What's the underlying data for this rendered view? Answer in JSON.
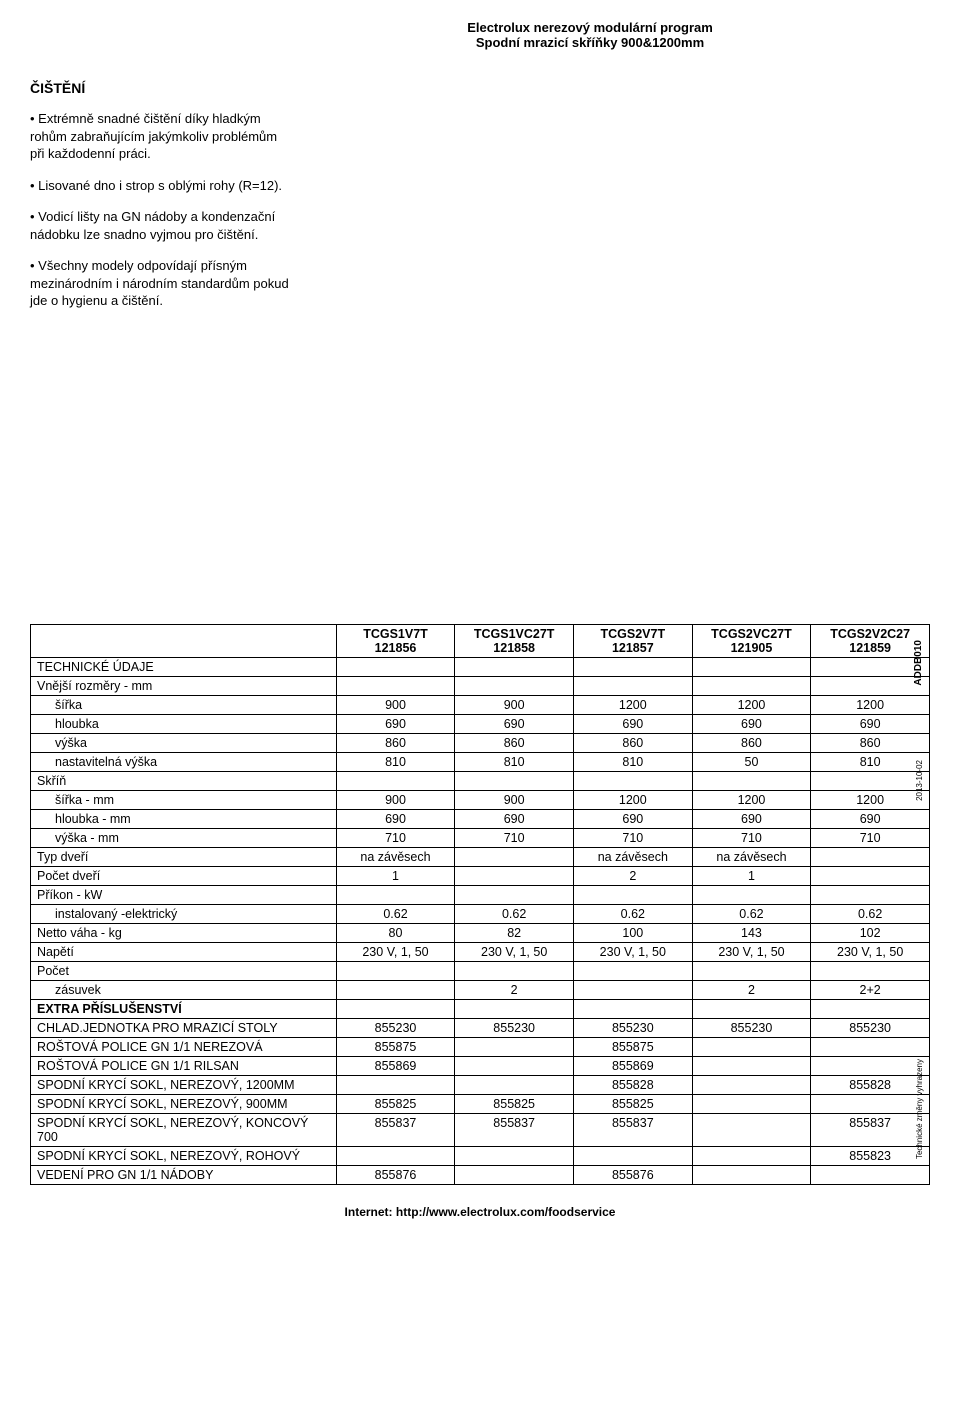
{
  "header": {
    "line1": "Electrolux nerezový modulární program",
    "line2": "Spodní mrazicí skříňky 900&1200mm"
  },
  "section_title": "ČIŠTĚNÍ",
  "bullets": [
    "• Extrémně snadné čištění díky hladkým rohům zabraňujícím jakýmkoliv problémům při každodenní práci.",
    "• Lisované dno i strop s oblými rohy (R=12).",
    "• Vodicí lišty na GN nádoby a kondenzační nádobku lze snadno vyjmou pro čištění.",
    "• Všechny modely odpovídají přísným mezinárodním i národním standardům pokud jde o hygienu a čištění."
  ],
  "table": {
    "columns": [
      {
        "model": "TCGS1V7T",
        "code": "121856"
      },
      {
        "model": "TCGS1VC27T",
        "code": "121858"
      },
      {
        "model": "TCGS2V7T",
        "code": "121857"
      },
      {
        "model": "TCGS2VC27T",
        "code": "121905"
      },
      {
        "model": "TCGS2V2C27",
        "code": "121859"
      }
    ],
    "sections": [
      {
        "heading": "TECHNICKÉ ÚDAJE",
        "rows": []
      },
      {
        "heading": "Vnější rozměry - mm",
        "indent": true,
        "rows": [
          {
            "label": "šířka",
            "v": [
              "900",
              "900",
              "1200",
              "1200",
              "1200"
            ]
          },
          {
            "label": "hloubka",
            "v": [
              "690",
              "690",
              "690",
              "690",
              "690"
            ]
          },
          {
            "label": "výška",
            "v": [
              "860",
              "860",
              "860",
              "860",
              "860"
            ]
          },
          {
            "label": "nastavitelná výška",
            "v": [
              "810",
              "810",
              "810",
              "50",
              "810"
            ]
          }
        ]
      },
      {
        "heading": "Skříň",
        "indent": true,
        "rows": [
          {
            "label": "šířka - mm",
            "v": [
              "900",
              "900",
              "1200",
              "1200",
              "1200"
            ]
          },
          {
            "label": "hloubka - mm",
            "v": [
              "690",
              "690",
              "690",
              "690",
              "690"
            ]
          },
          {
            "label": "výška - mm",
            "v": [
              "710",
              "710",
              "710",
              "710",
              "710"
            ]
          }
        ]
      },
      {
        "heading": "Typ dveří",
        "inline_values": [
          "na závěsech",
          "",
          "na závěsech",
          "na závěsech",
          ""
        ],
        "rows": []
      },
      {
        "heading": "Počet dveří",
        "inline_values": [
          "1",
          "",
          "2",
          "1",
          ""
        ],
        "rows": []
      },
      {
        "heading": "Příkon - kW",
        "indent": true,
        "rows": [
          {
            "label": "instalovaný -elektrický",
            "v": [
              "0.62",
              "0.62",
              "0.62",
              "0.62",
              "0.62"
            ]
          }
        ]
      },
      {
        "heading": "Netto váha - kg",
        "inline_values": [
          "80",
          "82",
          "100",
          "143",
          "102"
        ],
        "rows": []
      },
      {
        "heading": "Napětí",
        "inline_values": [
          "230 V, 1, 50",
          "230 V, 1, 50",
          "230 V, 1, 50",
          "230 V, 1, 50",
          "230 V, 1, 50"
        ],
        "rows": []
      },
      {
        "heading": "Počet",
        "indent": true,
        "rows": [
          {
            "label": "zásuvek",
            "v": [
              "",
              "2",
              "",
              "2",
              "2+2"
            ]
          }
        ]
      },
      {
        "heading": "EXTRA PŘÍSLUŠENSTVÍ",
        "bold": true,
        "rows": [
          {
            "label": "CHLAD.JEDNOTKA PRO MRAZICÍ STOLY",
            "v": [
              "855230",
              "855230",
              "855230",
              "855230",
              "855230"
            ]
          },
          {
            "label": "ROŠTOVÁ POLICE GN 1/1 NEREZOVÁ",
            "v": [
              "855875",
              "",
              "855875",
              "",
              ""
            ]
          },
          {
            "label": "ROŠTOVÁ POLICE GN 1/1 RILSAN",
            "v": [
              "855869",
              "",
              "855869",
              "",
              ""
            ]
          },
          {
            "label": "SPODNÍ KRYCÍ SOKL, NEREZOVÝ, 1200MM",
            "v": [
              "",
              "",
              "855828",
              "",
              "855828"
            ]
          },
          {
            "label": "SPODNÍ KRYCÍ SOKL, NEREZOVÝ, 900MM",
            "v": [
              "855825",
              "855825",
              "855825",
              "",
              ""
            ]
          },
          {
            "label": "SPODNÍ KRYCÍ SOKL, NEREZOVÝ, KONCOVÝ 700",
            "v": [
              "855837",
              "855837",
              "855837",
              "",
              "855837"
            ]
          },
          {
            "label": "SPODNÍ KRYCÍ SOKL, NEREZOVÝ, ROHOVÝ",
            "v": [
              "",
              "",
              "",
              "",
              "855823"
            ]
          },
          {
            "label": "VEDENÍ PRO GN 1/1 NÁDOBY",
            "v": [
              "855876",
              "",
              "855876",
              "",
              ""
            ]
          }
        ]
      }
    ]
  },
  "side": {
    "addb": "ADDB010",
    "date": "2013-10-02",
    "tech": "Technické změny vyhrazeny"
  },
  "footer": "Internet: http://www.electrolux.com/foodservice"
}
